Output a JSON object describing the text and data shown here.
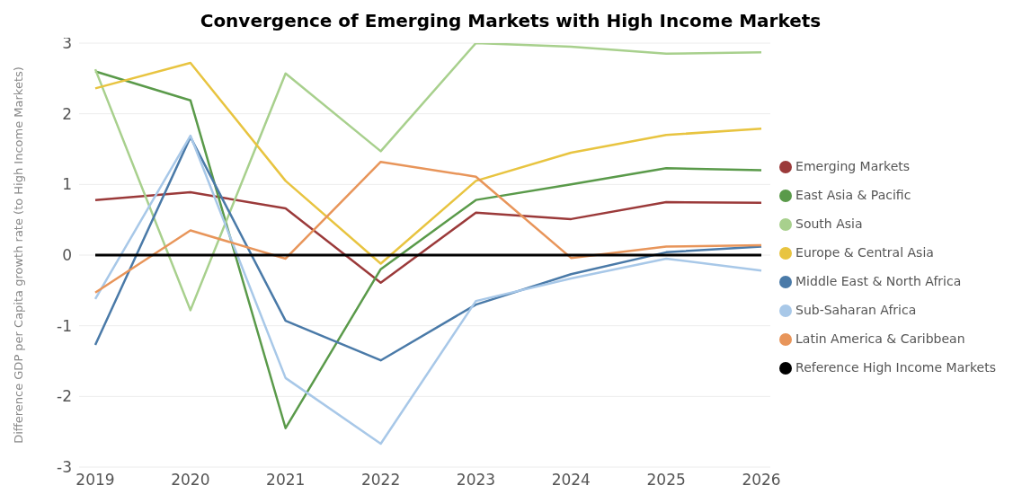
{
  "chart_data": {
    "type": "line",
    "title": "Convergence of Emerging Markets with High Income Markets",
    "ylabel": "Difference GDP per Capita growth rate (to High Income Markets)",
    "categories": [
      "2019",
      "2020",
      "2021",
      "2022",
      "2023",
      "2024",
      "2025",
      "2026"
    ],
    "series": [
      {
        "name": "Emerging Markets",
        "color": "#9b3a3a",
        "values": [
          0.78,
          0.89,
          0.66,
          -0.39,
          0.6,
          0.51,
          0.75,
          0.74
        ]
      },
      {
        "name": "East Asia & Pacific",
        "color": "#5a9a4a",
        "values": [
          2.6,
          2.19,
          -2.45,
          -0.2,
          0.78,
          1.0,
          1.23,
          1.2
        ]
      },
      {
        "name": "South Asia",
        "color": "#a8d08d",
        "values": [
          2.63,
          -0.78,
          2.57,
          1.47,
          3.0,
          2.95,
          2.85,
          2.87
        ]
      },
      {
        "name": "Europe & Central Asia",
        "color": "#e8c440",
        "values": [
          2.36,
          2.72,
          1.05,
          -0.12,
          1.05,
          1.45,
          1.7,
          1.79
        ]
      },
      {
        "name": "Middle East & North Africa",
        "color": "#4a7aa8",
        "values": [
          -1.27,
          1.67,
          -0.93,
          -1.49,
          -0.7,
          -0.27,
          0.04,
          0.12
        ]
      },
      {
        "name": "Sub-Saharan Africa",
        "color": "#a8c8e8",
        "values": [
          -0.62,
          1.69,
          -1.74,
          -2.67,
          -0.65,
          -0.33,
          -0.05,
          -0.22
        ]
      },
      {
        "name": "Latin America & Caribbean",
        "color": "#e8955a",
        "values": [
          -0.53,
          0.35,
          -0.05,
          1.32,
          1.11,
          -0.04,
          0.12,
          0.14
        ]
      },
      {
        "name": "Reference High Income Markets",
        "color": "#000000",
        "values": [
          0,
          0,
          0,
          0,
          0,
          0,
          0,
          0
        ]
      }
    ],
    "ylim": [
      -3,
      3
    ],
    "yticks": [
      -3,
      -2,
      -1,
      0,
      1,
      2,
      3
    ],
    "grid": "y",
    "legend": "right",
    "marker": "none",
    "line_style": "solid"
  }
}
